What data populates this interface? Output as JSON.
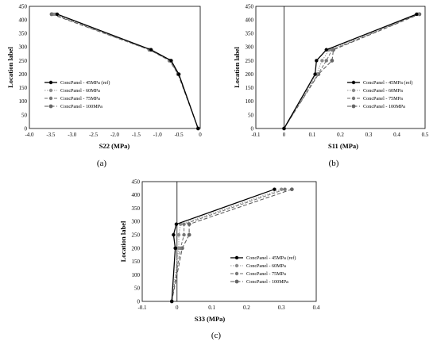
{
  "legend": [
    "ConcPanel - 45MPa (ref)",
    "ConcPanel - 60MPa",
    "ConcPanel - 75MPa",
    "ConcPanel - 100MPa"
  ],
  "chart_data": [
    {
      "type": "line",
      "panel_label": "(a)",
      "xlabel": "S22 (MPa)",
      "ylabel": "Location label",
      "xlim": [
        -4.0,
        0
      ],
      "ylim": [
        0,
        450
      ],
      "xticks": [
        -4.0,
        -3.5,
        -3.0,
        -2.5,
        -2.0,
        -1.5,
        -1.0,
        -0.5,
        0
      ],
      "xtick_labels": [
        "-4.0",
        "-3.5",
        "-3.0",
        "-2.5",
        "-2.0",
        "-1.5",
        "-1.0",
        "-0.5",
        "0"
      ],
      "yticks": [
        0,
        50,
        100,
        150,
        200,
        250,
        300,
        350,
        400,
        450
      ],
      "grid": false,
      "legend_position": "left-middle",
      "series": [
        {
          "name": "ConcPanel - 45MPa (ref)",
          "x": [
            -3.35,
            -1.15,
            -0.68,
            -0.5,
            -0.05
          ],
          "y": [
            421,
            290,
            250,
            200,
            0
          ]
        },
        {
          "name": "ConcPanel - 60MPa",
          "x": [
            -3.4,
            -1.17,
            -0.7,
            -0.5,
            -0.05
          ],
          "y": [
            421,
            290,
            250,
            200,
            0
          ]
        },
        {
          "name": "ConcPanel - 75MPa",
          "x": [
            -3.45,
            -1.18,
            -0.71,
            -0.51,
            -0.05
          ],
          "y": [
            421,
            290,
            250,
            200,
            0
          ]
        },
        {
          "name": "ConcPanel - 100MPa",
          "x": [
            -3.48,
            -1.19,
            -0.72,
            -0.52,
            -0.05
          ],
          "y": [
            421,
            290,
            250,
            200,
            0
          ]
        }
      ]
    },
    {
      "type": "line",
      "panel_label": "(b)",
      "xlabel": "S11 (MPa)",
      "ylabel": "Location label",
      "xlim": [
        -0.1,
        0.5
      ],
      "ylim": [
        0,
        450
      ],
      "xticks": [
        -0.1,
        0,
        0.1,
        0.2,
        0.3,
        0.4,
        0.5
      ],
      "xtick_labels": [
        "-0.1",
        "0",
        "0.1",
        "0.2",
        "0.3",
        "0.4",
        "0.5"
      ],
      "yticks": [
        0,
        50,
        100,
        150,
        200,
        250,
        300,
        350,
        400,
        450
      ],
      "grid": false,
      "legend_position": "right-middle",
      "series": [
        {
          "name": "ConcPanel - 45MPa (ref)",
          "x": [
            0,
            0.11,
            0.115,
            0.15,
            0.47
          ],
          "y": [
            0,
            200,
            250,
            290,
            421
          ]
        },
        {
          "name": "ConcPanel - 60MPa",
          "x": [
            0,
            0.115,
            0.135,
            0.16,
            0.473
          ],
          "y": [
            0,
            200,
            250,
            290,
            421
          ]
        },
        {
          "name": "ConcPanel - 75MPa",
          "x": [
            0,
            0.12,
            0.15,
            0.17,
            0.476
          ],
          "y": [
            0,
            200,
            250,
            290,
            421
          ]
        },
        {
          "name": "ConcPanel - 100MPa",
          "x": [
            0,
            0.122,
            0.17,
            0.175,
            0.48
          ],
          "y": [
            0,
            200,
            250,
            290,
            421
          ]
        }
      ]
    },
    {
      "type": "line",
      "panel_label": "(c)",
      "xlabel": "S33 (MPa)",
      "ylabel": "Location label",
      "xlim": [
        -0.1,
        0.4
      ],
      "ylim": [
        0,
        450
      ],
      "xticks": [
        -0.1,
        0,
        0.1,
        0.2,
        0.3,
        0.4
      ],
      "xtick_labels": [
        "-0.1",
        "0",
        "0.1",
        "0.2",
        "0.3",
        "0.4"
      ],
      "yticks": [
        0,
        50,
        100,
        150,
        200,
        250,
        300,
        350,
        400,
        450
      ],
      "grid": false,
      "legend_position": "right-middle",
      "series": [
        {
          "name": "ConcPanel - 45MPa (ref)",
          "x": [
            -0.015,
            -0.005,
            -0.01,
            -0.002,
            0.28
          ],
          "y": [
            0,
            200,
            250,
            290,
            421
          ]
        },
        {
          "name": "ConcPanel - 60MPa",
          "x": [
            -0.015,
            0.005,
            0.005,
            0.01,
            0.3
          ],
          "y": [
            0,
            200,
            250,
            290,
            421
          ]
        },
        {
          "name": "ConcPanel - 75MPa",
          "x": [
            -0.015,
            0.01,
            0.02,
            0.02,
            0.31
          ],
          "y": [
            0,
            200,
            250,
            290,
            421
          ]
        },
        {
          "name": "ConcPanel - 100MPa",
          "x": [
            -0.015,
            0.015,
            0.035,
            0.035,
            0.33
          ],
          "y": [
            0,
            200,
            250,
            290,
            421
          ]
        }
      ]
    }
  ]
}
